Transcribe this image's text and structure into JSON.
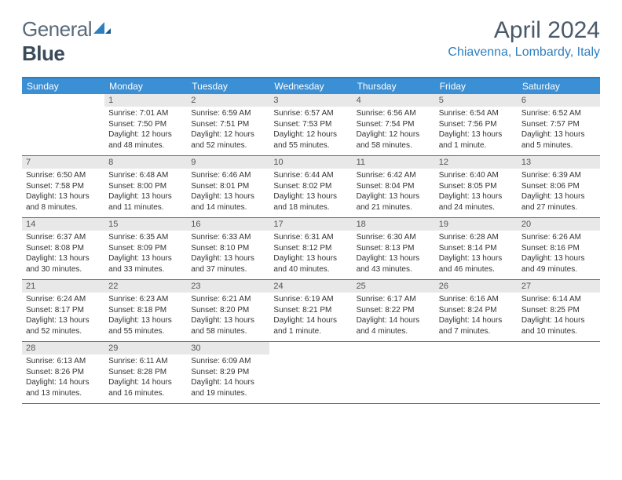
{
  "brand": {
    "part1": "General",
    "part2": "Blue"
  },
  "title": "April 2024",
  "location": "Chiavenna, Lombardy, Italy",
  "colors": {
    "header_bg": "#3b8fd4",
    "accent": "#2f7fbf",
    "daynum_bg": "#e8e8e8",
    "text": "#333333",
    "title_text": "#4a5a6a"
  },
  "day_names": [
    "Sunday",
    "Monday",
    "Tuesday",
    "Wednesday",
    "Thursday",
    "Friday",
    "Saturday"
  ],
  "leading_blanks": 1,
  "days": [
    {
      "n": 1,
      "sunrise": "7:01 AM",
      "sunset": "7:50 PM",
      "daylight": "12 hours and 48 minutes."
    },
    {
      "n": 2,
      "sunrise": "6:59 AM",
      "sunset": "7:51 PM",
      "daylight": "12 hours and 52 minutes."
    },
    {
      "n": 3,
      "sunrise": "6:57 AM",
      "sunset": "7:53 PM",
      "daylight": "12 hours and 55 minutes."
    },
    {
      "n": 4,
      "sunrise": "6:56 AM",
      "sunset": "7:54 PM",
      "daylight": "12 hours and 58 minutes."
    },
    {
      "n": 5,
      "sunrise": "6:54 AM",
      "sunset": "7:56 PM",
      "daylight": "13 hours and 1 minute."
    },
    {
      "n": 6,
      "sunrise": "6:52 AM",
      "sunset": "7:57 PM",
      "daylight": "13 hours and 5 minutes."
    },
    {
      "n": 7,
      "sunrise": "6:50 AM",
      "sunset": "7:58 PM",
      "daylight": "13 hours and 8 minutes."
    },
    {
      "n": 8,
      "sunrise": "6:48 AM",
      "sunset": "8:00 PM",
      "daylight": "13 hours and 11 minutes."
    },
    {
      "n": 9,
      "sunrise": "6:46 AM",
      "sunset": "8:01 PM",
      "daylight": "13 hours and 14 minutes."
    },
    {
      "n": 10,
      "sunrise": "6:44 AM",
      "sunset": "8:02 PM",
      "daylight": "13 hours and 18 minutes."
    },
    {
      "n": 11,
      "sunrise": "6:42 AM",
      "sunset": "8:04 PM",
      "daylight": "13 hours and 21 minutes."
    },
    {
      "n": 12,
      "sunrise": "6:40 AM",
      "sunset": "8:05 PM",
      "daylight": "13 hours and 24 minutes."
    },
    {
      "n": 13,
      "sunrise": "6:39 AM",
      "sunset": "8:06 PM",
      "daylight": "13 hours and 27 minutes."
    },
    {
      "n": 14,
      "sunrise": "6:37 AM",
      "sunset": "8:08 PM",
      "daylight": "13 hours and 30 minutes."
    },
    {
      "n": 15,
      "sunrise": "6:35 AM",
      "sunset": "8:09 PM",
      "daylight": "13 hours and 33 minutes."
    },
    {
      "n": 16,
      "sunrise": "6:33 AM",
      "sunset": "8:10 PM",
      "daylight": "13 hours and 37 minutes."
    },
    {
      "n": 17,
      "sunrise": "6:31 AM",
      "sunset": "8:12 PM",
      "daylight": "13 hours and 40 minutes."
    },
    {
      "n": 18,
      "sunrise": "6:30 AM",
      "sunset": "8:13 PM",
      "daylight": "13 hours and 43 minutes."
    },
    {
      "n": 19,
      "sunrise": "6:28 AM",
      "sunset": "8:14 PM",
      "daylight": "13 hours and 46 minutes."
    },
    {
      "n": 20,
      "sunrise": "6:26 AM",
      "sunset": "8:16 PM",
      "daylight": "13 hours and 49 minutes."
    },
    {
      "n": 21,
      "sunrise": "6:24 AM",
      "sunset": "8:17 PM",
      "daylight": "13 hours and 52 minutes."
    },
    {
      "n": 22,
      "sunrise": "6:23 AM",
      "sunset": "8:18 PM",
      "daylight": "13 hours and 55 minutes."
    },
    {
      "n": 23,
      "sunrise": "6:21 AM",
      "sunset": "8:20 PM",
      "daylight": "13 hours and 58 minutes."
    },
    {
      "n": 24,
      "sunrise": "6:19 AM",
      "sunset": "8:21 PM",
      "daylight": "14 hours and 1 minute."
    },
    {
      "n": 25,
      "sunrise": "6:17 AM",
      "sunset": "8:22 PM",
      "daylight": "14 hours and 4 minutes."
    },
    {
      "n": 26,
      "sunrise": "6:16 AM",
      "sunset": "8:24 PM",
      "daylight": "14 hours and 7 minutes."
    },
    {
      "n": 27,
      "sunrise": "6:14 AM",
      "sunset": "8:25 PM",
      "daylight": "14 hours and 10 minutes."
    },
    {
      "n": 28,
      "sunrise": "6:13 AM",
      "sunset": "8:26 PM",
      "daylight": "14 hours and 13 minutes."
    },
    {
      "n": 29,
      "sunrise": "6:11 AM",
      "sunset": "8:28 PM",
      "daylight": "14 hours and 16 minutes."
    },
    {
      "n": 30,
      "sunrise": "6:09 AM",
      "sunset": "8:29 PM",
      "daylight": "14 hours and 19 minutes."
    }
  ],
  "labels": {
    "sunrise": "Sunrise:",
    "sunset": "Sunset:",
    "daylight": "Daylight:"
  }
}
